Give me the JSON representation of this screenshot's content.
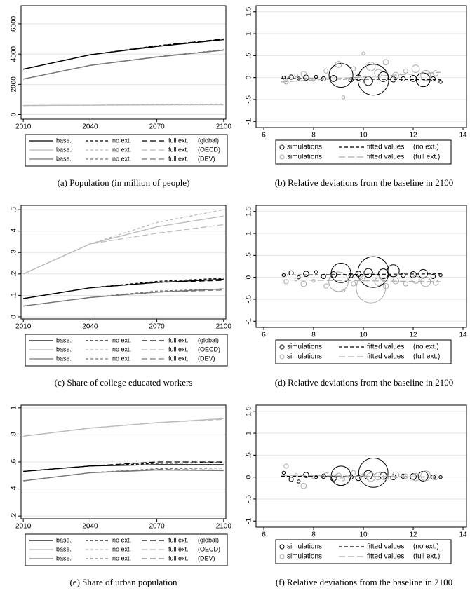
{
  "chart_data": [
    {
      "type": "line",
      "caption": "(a) Population (in million of people)",
      "legend": "bottom",
      "grid": true,
      "x": [
        2010,
        2040,
        2070,
        2100
      ],
      "xlim": [
        2009,
        2101
      ],
      "xticks": [
        2010,
        2040,
        2070,
        2100
      ],
      "ylim": [
        -300,
        7200
      ],
      "yticks": [
        0,
        2000,
        4000,
        6000
      ],
      "series": [
        {
          "name": "(global)",
          "color": "#000000",
          "lines": [
            {
              "name": "base.",
              "dash": "solid",
              "values": [
                3000,
                3950,
                4500,
                4950
              ]
            },
            {
              "name": "no ext.",
              "dash": "4,3",
              "values": [
                3000,
                3950,
                4550,
                4980
              ]
            },
            {
              "name": "full ext.",
              "dash": "8,4",
              "values": [
                3000,
                3950,
                4530,
                5000
              ]
            }
          ]
        },
        {
          "name": "(OECD)",
          "color": "#bbbbbb",
          "lines": [
            {
              "name": "base.",
              "dash": "solid",
              "values": [
                600,
                620,
                640,
                650
              ]
            },
            {
              "name": "no ext.",
              "dash": "4,3",
              "values": [
                600,
                625,
                660,
                700
              ]
            },
            {
              "name": "full ext.",
              "dash": "8,4",
              "values": [
                600,
                620,
                645,
                670
              ]
            }
          ]
        },
        {
          "name": "(DEV)",
          "color": "#777777",
          "lines": [
            {
              "name": "base.",
              "dash": "solid",
              "values": [
                2350,
                3250,
                3800,
                4250
              ]
            },
            {
              "name": "no ext.",
              "dash": "4,3",
              "values": [
                2350,
                3250,
                3820,
                4280
              ]
            },
            {
              "name": "full ext.",
              "dash": "8,4",
              "values": [
                2350,
                3250,
                3810,
                4270
              ]
            }
          ]
        }
      ]
    },
    {
      "type": "scatter",
      "caption": "(b) Relative deviations from the baseline in 2100",
      "legend": "bottom",
      "grid": true,
      "xlim": [
        5.69,
        14.14
      ],
      "xticks": [
        6,
        8,
        10,
        12,
        14
      ],
      "ylim": [
        -1.14,
        1.64
      ],
      "yticks": [
        -1,
        {
          "value": -0.5,
          "label": "-.5"
        },
        0,
        {
          "value": 0.5,
          "label": ".5"
        },
        1,
        1.5
      ],
      "series": [
        {
          "name": "simulations",
          "color": "#000000",
          "x": [
            6.8,
            7.1,
            7.4,
            7.7,
            8.1,
            8.4,
            8.8,
            9.1,
            9.5,
            9.8,
            10.2,
            10.4,
            10.8,
            11.2,
            11.6,
            12.0,
            12.4,
            12.8,
            13.1
          ],
          "values": [
            0,
            0.01,
            -0.02,
            0,
            0.02,
            -0.03,
            -0.02,
            0.05,
            -0.05,
            0,
            -0.08,
            -0.05,
            0.02,
            -0.04,
            -0.03,
            -0.02,
            -0.05,
            -0.03,
            -0.1
          ],
          "sizes": [
            1,
            2,
            1,
            3,
            1,
            2,
            4,
            60,
            2,
            3,
            8,
            100,
            10,
            3,
            2,
            4,
            20,
            2,
            1
          ]
        },
        {
          "name": "simulations",
          "color": "#aaaaaa",
          "x": [
            6.9,
            7.3,
            7.6,
            8.0,
            8.5,
            9.0,
            9.2,
            9.6,
            10.0,
            10.3,
            10.6,
            10.9,
            11.3,
            11.7,
            12.1,
            12.5,
            12.9
          ],
          "values": [
            -0.1,
            0.05,
            0.08,
            -0.05,
            0.15,
            0.3,
            -0.45,
            0.2,
            0.55,
            0.25,
            0.1,
            0.35,
            0.05,
            0.15,
            0.2,
            0.05,
            0.1
          ],
          "sizes": [
            2,
            1,
            3,
            1,
            2,
            4,
            1,
            2,
            1,
            8,
            6,
            3,
            4,
            2,
            6,
            10,
            3
          ]
        },
        {
          "name": "fitted values",
          "label": "(no ext.)",
          "color": "#000000",
          "dash": "5,3",
          "x": [
            6.7,
            13.1
          ],
          "values": [
            -0.02,
            -0.05
          ]
        },
        {
          "name": "fitted values",
          "label": "(full ext.)",
          "color": "#aaaaaa",
          "dash": "9,4",
          "x": [
            6.7,
            13.1
          ],
          "values": [
            -0.1,
            0.12
          ]
        }
      ]
    },
    {
      "type": "line",
      "caption": "(c) Share of college educated workers",
      "legend": "bottom",
      "grid": true,
      "x": [
        2010,
        2040,
        2070,
        2100
      ],
      "xlim": [
        2009,
        2101
      ],
      "xticks": [
        2010,
        2040,
        2070,
        2100
      ],
      "ylim": [
        -0.01,
        0.52
      ],
      "yticks": [
        0,
        {
          "value": 0.1,
          "label": ".1"
        },
        {
          "value": 0.2,
          "label": ".2"
        },
        {
          "value": 0.3,
          "label": ".3"
        },
        {
          "value": 0.4,
          "label": ".4"
        },
        {
          "value": 0.5,
          "label": ".5"
        }
      ],
      "series": [
        {
          "name": "(global)",
          "color": "#000000",
          "lines": [
            {
              "name": "base.",
              "dash": "solid",
              "values": [
                0.085,
                0.135,
                0.16,
                0.175
              ]
            },
            {
              "name": "no ext.",
              "dash": "4,3",
              "values": [
                0.085,
                0.135,
                0.165,
                0.18
              ]
            },
            {
              "name": "full ext.",
              "dash": "8,4",
              "values": [
                0.085,
                0.135,
                0.16,
                0.17
              ]
            }
          ]
        },
        {
          "name": "(OECD)",
          "color": "#bbbbbb",
          "lines": [
            {
              "name": "base.",
              "dash": "solid",
              "values": [
                0.2,
                0.34,
                0.42,
                0.47
              ]
            },
            {
              "name": "no ext.",
              "dash": "4,3",
              "values": [
                0.2,
                0.34,
                0.44,
                0.5
              ]
            },
            {
              "name": "full ext.",
              "dash": "8,4",
              "values": [
                0.2,
                0.34,
                0.39,
                0.43
              ]
            }
          ]
        },
        {
          "name": "(DEV)",
          "color": "#777777",
          "lines": [
            {
              "name": "base.",
              "dash": "solid",
              "values": [
                0.05,
                0.09,
                0.115,
                0.13
              ]
            },
            {
              "name": "no ext.",
              "dash": "4,3",
              "values": [
                0.05,
                0.09,
                0.12,
                0.13
              ]
            },
            {
              "name": "full ext.",
              "dash": "8,4",
              "values": [
                0.05,
                0.09,
                0.115,
                0.125
              ]
            }
          ]
        }
      ]
    },
    {
      "type": "scatter",
      "caption": "(d) Relative deviations from the baseline in 2100",
      "legend": "bottom",
      "grid": true,
      "xlim": [
        5.69,
        14.14
      ],
      "xticks": [
        6,
        8,
        10,
        12,
        14
      ],
      "ylim": [
        -1.14,
        1.64
      ],
      "yticks": [
        -1,
        {
          "value": -0.5,
          "label": "-.5"
        },
        0,
        {
          "value": 0.5,
          "label": ".5"
        },
        1,
        1.5
      ],
      "series": [
        {
          "name": "simulations",
          "color": "#000000",
          "x": [
            6.8,
            7.1,
            7.4,
            7.7,
            8.1,
            8.4,
            8.8,
            9.1,
            9.5,
            9.8,
            10.2,
            10.4,
            10.8,
            11.2,
            11.6,
            12.0,
            12.4,
            12.8,
            13.1
          ],
          "values": [
            0.05,
            0.1,
            0,
            0.08,
            0.12,
            0.02,
            0.06,
            0.1,
            0.04,
            0.08,
            0.1,
            0.12,
            0.08,
            0.15,
            0.05,
            0.06,
            0.08,
            0.02,
            0.05
          ],
          "sizes": [
            1,
            2,
            1,
            3,
            1,
            2,
            4,
            40,
            2,
            3,
            8,
            100,
            10,
            15,
            2,
            4,
            8,
            2,
            1
          ]
        },
        {
          "name": "simulations",
          "color": "#aaaaaa",
          "x": [
            6.9,
            7.3,
            7.6,
            8.0,
            8.5,
            9.0,
            9.2,
            9.6,
            10.0,
            10.3,
            10.6,
            10.9,
            11.3,
            11.7,
            12.1,
            12.5,
            12.9
          ],
          "values": [
            -0.1,
            -0.05,
            -0.15,
            -0.08,
            -0.2,
            -0.1,
            -0.3,
            -0.15,
            -0.05,
            -0.25,
            -0.1,
            -0.2,
            -0.08,
            -0.15,
            -0.05,
            -0.1,
            -0.12
          ],
          "sizes": [
            2,
            1,
            3,
            1,
            2,
            40,
            1,
            2,
            1,
            90,
            6,
            3,
            4,
            2,
            6,
            10,
            3
          ]
        },
        {
          "name": "fitted values",
          "label": "(no ext.)",
          "color": "#000000",
          "dash": "5,3",
          "x": [
            6.7,
            13.1
          ],
          "values": [
            0.05,
            0.08
          ]
        },
        {
          "name": "fitted values",
          "label": "(full ext.)",
          "color": "#aaaaaa",
          "dash": "9,4",
          "x": [
            6.7,
            13.1
          ],
          "values": [
            -0.06,
            -0.1
          ]
        }
      ]
    },
    {
      "type": "line",
      "caption": "(e) Share of urban population",
      "legend": "bottom",
      "grid": true,
      "x": [
        2010,
        2040,
        2070,
        2100
      ],
      "xlim": [
        2009,
        2101
      ],
      "xticks": [
        2010,
        2040,
        2070,
        2100
      ],
      "ylim": [
        0.18,
        1.02
      ],
      "yticks": [
        {
          "value": 0.2,
          "label": ".2"
        },
        {
          "value": 0.4,
          "label": ".4"
        },
        {
          "value": 0.6,
          "label": ".6"
        },
        {
          "value": 0.8,
          "label": ".8"
        },
        1
      ],
      "series": [
        {
          "name": "(global)",
          "color": "#000000",
          "lines": [
            {
              "name": "base.",
              "dash": "solid",
              "values": [
                0.53,
                0.57,
                0.58,
                0.58
              ]
            },
            {
              "name": "no ext.",
              "dash": "4,3",
              "values": [
                0.53,
                0.57,
                0.59,
                0.595
              ]
            },
            {
              "name": "full ext.",
              "dash": "8,4",
              "values": [
                0.53,
                0.57,
                0.6,
                0.6
              ]
            }
          ]
        },
        {
          "name": "(OECD)",
          "color": "#bbbbbb",
          "lines": [
            {
              "name": "base.",
              "dash": "solid",
              "values": [
                0.79,
                0.85,
                0.89,
                0.92
              ]
            },
            {
              "name": "no ext.",
              "dash": "4,3",
              "values": [
                0.79,
                0.85,
                0.89,
                0.92
              ]
            },
            {
              "name": "full ext.",
              "dash": "8,4",
              "values": [
                0.79,
                0.85,
                0.89,
                0.915
              ]
            }
          ]
        },
        {
          "name": "(DEV)",
          "color": "#777777",
          "lines": [
            {
              "name": "base.",
              "dash": "solid",
              "values": [
                0.46,
                0.52,
                0.54,
                0.535
              ]
            },
            {
              "name": "no ext.",
              "dash": "4,3",
              "values": [
                0.46,
                0.52,
                0.55,
                0.555
              ]
            },
            {
              "name": "full ext.",
              "dash": "8,4",
              "values": [
                0.46,
                0.52,
                0.545,
                0.54
              ]
            }
          ]
        }
      ]
    },
    {
      "type": "scatter",
      "caption": "(f) Relative deviations from the baseline in 2100",
      "legend": "bottom",
      "grid": true,
      "xlim": [
        5.69,
        14.14
      ],
      "xticks": [
        6,
        8,
        10,
        12,
        14
      ],
      "ylim": [
        -1.14,
        1.64
      ],
      "yticks": [
        -1,
        {
          "value": -0.5,
          "label": "-.5"
        },
        0,
        {
          "value": 0.5,
          "label": ".5"
        },
        1,
        1.5
      ],
      "series": [
        {
          "name": "simulations",
          "color": "#000000",
          "x": [
            6.8,
            7.1,
            7.4,
            7.7,
            8.1,
            8.4,
            8.8,
            9.1,
            9.5,
            9.8,
            10.2,
            10.4,
            10.8,
            11.2,
            11.6,
            12.0,
            12.4,
            12.8,
            13.1
          ],
          "values": [
            0.1,
            -0.05,
            -0.1,
            0.05,
            0,
            0.02,
            -0.02,
            0.03,
            0,
            -0.02,
            0.05,
            0.1,
            0.03,
            0,
            0.02,
            0.01,
            0.02,
            0,
            0
          ],
          "sizes": [
            1,
            2,
            1,
            3,
            1,
            2,
            4,
            40,
            2,
            3,
            8,
            90,
            5,
            3,
            2,
            4,
            10,
            2,
            1
          ]
        },
        {
          "name": "simulations",
          "color": "#aaaaaa",
          "x": [
            6.9,
            7.3,
            7.6,
            8.0,
            8.5,
            9.0,
            9.2,
            9.6,
            10.0,
            10.3,
            10.6,
            10.9,
            11.3,
            11.7,
            12.1,
            12.5,
            12.9
          ],
          "values": [
            0.25,
            0.05,
            -0.2,
            0,
            0.05,
            0.02,
            -0.05,
            0.1,
            0.05,
            0,
            0.02,
            0,
            0.05,
            0.02,
            0,
            0.03,
            0
          ],
          "sizes": [
            2,
            1,
            3,
            1,
            2,
            4,
            1,
            2,
            1,
            8,
            6,
            3,
            4,
            2,
            6,
            10,
            3
          ]
        },
        {
          "name": "fitted values",
          "label": "(no ext.)",
          "color": "#000000",
          "dash": "5,3",
          "x": [
            6.7,
            13.1
          ],
          "values": [
            0.02,
            0
          ]
        },
        {
          "name": "fitted values",
          "label": "(full ext.)",
          "color": "#aaaaaa",
          "dash": "9,4",
          "x": [
            6.7,
            13.1
          ],
          "values": [
            0.04,
            0
          ]
        }
      ]
    }
  ]
}
